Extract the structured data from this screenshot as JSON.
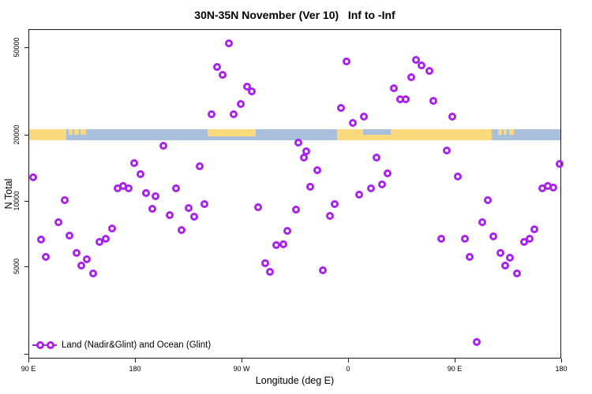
{
  "title": "30N-35N November (Ver 10)   Inf to -Inf",
  "chart_data": {
    "type": "scatter",
    "title": "30N-35N November (Ver 10)   Inf to -Inf",
    "xlabel": "Longitude (deg E)",
    "ylabel": "N Total",
    "point_color": "#a821ec",
    "grid": false,
    "x_axis": {
      "min": 90,
      "max": 540,
      "note": "longitude axis wraps eastward from 90E around the globe to 180",
      "ticks": [
        {
          "value": 90,
          "label": "90 E"
        },
        {
          "value": 180,
          "label": "180"
        },
        {
          "value": 270,
          "label": "90 W"
        },
        {
          "value": 360,
          "label": "0"
        },
        {
          "value": 450,
          "label": "90 E"
        },
        {
          "value": 540,
          "label": "180"
        }
      ]
    },
    "y_axis": {
      "scale": "log",
      "min": 1905,
      "max": 60500,
      "ticks": [
        {
          "value": 2000,
          "label": ""
        },
        {
          "value": 5000,
          "label": "5000"
        },
        {
          "value": 10000,
          "label": "10000"
        },
        {
          "value": 20000,
          "label": "20000"
        },
        {
          "value": 50000,
          "label": "50000"
        }
      ]
    },
    "legend": [
      {
        "label": "Land (Nadir&Glint) and Ocean (Glint)",
        "marker": "line-with-open-circles",
        "color": "#a821ec"
      }
    ],
    "map_band": {
      "y_range": [
        19000,
        21250
      ],
      "ocean_color": "#a9bfdb",
      "land_color": "#fbd97e",
      "land_segments": [
        {
          "from": 90,
          "to": 121.5,
          "valign": "full",
          "hfrac": 1
        },
        {
          "from": 123.5,
          "to": 126.5,
          "valign": "top",
          "hfrac": 0.5
        },
        {
          "from": 128,
          "to": 132,
          "valign": "top",
          "hfrac": 0.5
        },
        {
          "from": 133.5,
          "to": 138,
          "valign": "top",
          "hfrac": 0.5
        },
        {
          "from": 240.5,
          "to": 281.5,
          "valign": "top",
          "hfrac": 0.65
        },
        {
          "from": 350,
          "to": 372,
          "valign": "full",
          "hfrac": 1
        },
        {
          "from": 372,
          "to": 395,
          "valign": "bottom",
          "hfrac": 0.5
        },
        {
          "from": 395,
          "to": 480.5,
          "valign": "full",
          "hfrac": 1
        },
        {
          "from": 486,
          "to": 489,
          "valign": "top",
          "hfrac": 0.5
        },
        {
          "from": 490.5,
          "to": 493.5,
          "valign": "top",
          "hfrac": 0.5
        },
        {
          "from": 495,
          "to": 499,
          "valign": "top",
          "hfrac": 0.5
        }
      ]
    },
    "points": [
      [
        203.3,
        17900
      ],
      [
        178.7,
        14900
      ],
      [
        184,
        13300
      ],
      [
        93.3,
        12900
      ],
      [
        164.7,
        11500
      ],
      [
        169.3,
        11800
      ],
      [
        174,
        11500
      ],
      [
        188.7,
        10900
      ],
      [
        196.7,
        10600
      ],
      [
        258.7,
        52500
      ],
      [
        248.7,
        41000
      ],
      [
        253.3,
        37800
      ],
      [
        274,
        33400
      ],
      [
        278,
        31800
      ],
      [
        268.7,
        27700
      ],
      [
        262.7,
        24900
      ],
      [
        244,
        24900
      ],
      [
        234,
        14500
      ],
      [
        214,
        11500
      ],
      [
        358,
        43500
      ],
      [
        416.7,
        44200
      ],
      [
        421.3,
        41700
      ],
      [
        428,
        39400
      ],
      [
        412.7,
        36900
      ],
      [
        398,
        32900
      ],
      [
        403.3,
        29100
      ],
      [
        408,
        29100
      ],
      [
        353.3,
        26600
      ],
      [
        372.7,
        24300
      ],
      [
        363.3,
        22700
      ],
      [
        317.3,
        18600
      ],
      [
        324,
        16900
      ],
      [
        322,
        15800
      ],
      [
        383.3,
        15800
      ],
      [
        333.3,
        13900
      ],
      [
        392.7,
        13400
      ],
      [
        327.3,
        11700
      ],
      [
        388,
        12000
      ],
      [
        378.7,
        11500
      ],
      [
        368.7,
        10700
      ],
      [
        431.3,
        28800
      ],
      [
        447.3,
        24300
      ],
      [
        442.7,
        17000
      ],
      [
        452,
        13000
      ],
      [
        538,
        14800
      ],
      [
        523.3,
        11500
      ],
      [
        528,
        11800
      ],
      [
        532.7,
        11600
      ],
      [
        120,
        10100
      ],
      [
        114.7,
        8060
      ],
      [
        100,
        6720
      ],
      [
        124,
        7000
      ],
      [
        104,
        5570
      ],
      [
        130,
        5800
      ],
      [
        160,
        7540
      ],
      [
        154.7,
        6780
      ],
      [
        149.3,
        6510
      ],
      [
        138.7,
        5430
      ],
      [
        134,
        5080
      ],
      [
        144,
        4680
      ],
      [
        194,
        9270
      ],
      [
        208.7,
        8680
      ],
      [
        224.7,
        9340
      ],
      [
        229.3,
        8530
      ],
      [
        238,
        9740
      ],
      [
        218.7,
        7420
      ],
      [
        283.3,
        9420
      ],
      [
        315.3,
        9190
      ],
      [
        308,
        7360
      ],
      [
        298.7,
        6300
      ],
      [
        304.7,
        6350
      ],
      [
        289.3,
        5210
      ],
      [
        293.3,
        4760
      ],
      [
        348,
        9740
      ],
      [
        344,
        8600
      ],
      [
        338,
        4840
      ],
      [
        477.3,
        10100
      ],
      [
        472.7,
        8060
      ],
      [
        438,
        6780
      ],
      [
        458,
        6780
      ],
      [
        482,
        6940
      ],
      [
        516.7,
        7480
      ],
      [
        508,
        6560
      ],
      [
        512.7,
        6780
      ],
      [
        462,
        5570
      ],
      [
        488,
        5840
      ],
      [
        496,
        5520
      ],
      [
        492,
        5080
      ],
      [
        502,
        4680
      ],
      [
        468,
        2290
      ]
    ]
  }
}
